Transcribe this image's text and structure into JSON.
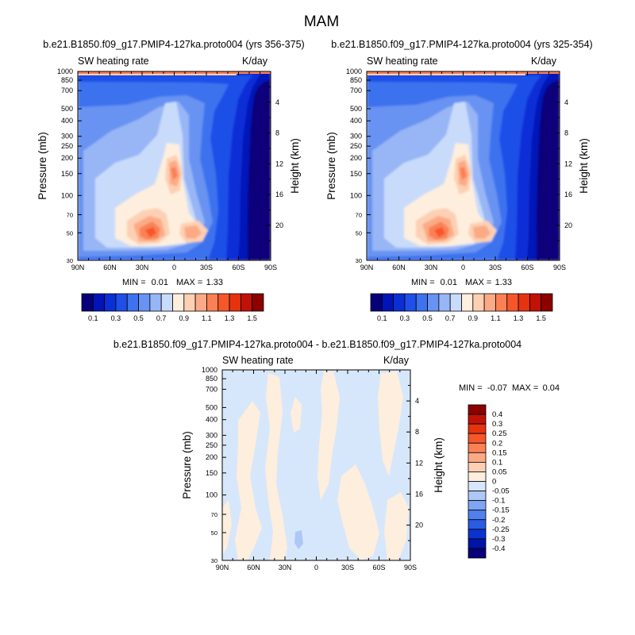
{
  "main_title": "MAM",
  "chart_data": [
    {
      "type": "heatmap",
      "title": "b.e21.B1850.f09_g17.PMIP4-127ka.proto004 (yrs 356-375)",
      "left_label": "SW heating rate",
      "right_label": "K/day",
      "ylabel": "Pressure (mb)",
      "ylabel_right": "Height (km)",
      "x_ticks": [
        "90N",
        "60N",
        "30N",
        "0",
        "30S",
        "60S",
        "90S"
      ],
      "y_ticks": [
        "30",
        "50",
        "70",
        "100",
        "150",
        "200",
        "250",
        "300",
        "400",
        "500",
        "700",
        "850",
        "1000"
      ],
      "height_ticks": [
        "20",
        "16",
        "12",
        "8",
        "4"
      ],
      "stats": {
        "min_label": "MIN =",
        "min": "0.01",
        "max_label": "MAX =",
        "max": "1.33"
      },
      "colorbar": {
        "orientation": "horizontal",
        "labels": [
          "0.1",
          "0.3",
          "0.5",
          "0.7",
          "0.9",
          "1.1",
          "1.3",
          "1.5"
        ],
        "colors": [
          "#08007a",
          "#0014b8",
          "#0b2fd6",
          "#1f4fe8",
          "#3e72ef",
          "#6893f2",
          "#98b6f5",
          "#c8dbfb",
          "#feeedd",
          "#fdd0b4",
          "#fcaa86",
          "#fb8155",
          "#f6572a",
          "#e5330f",
          "#c01206",
          "#8c0000"
        ]
      },
      "ylim_mb": [
        1000,
        30
      ],
      "xlim_lat": [
        90,
        -90
      ]
    },
    {
      "type": "heatmap",
      "title": "b.e21.B1850.f09_g17.PMIP4-127ka.proto004 (yrs 325-354)",
      "left_label": "SW heating rate",
      "right_label": "K/day",
      "ylabel": "Pressure (mb)",
      "ylabel_right": "Height (km)",
      "x_ticks": [
        "90N",
        "60N",
        "30N",
        "0",
        "30S",
        "60S",
        "90S"
      ],
      "y_ticks": [
        "30",
        "50",
        "70",
        "100",
        "150",
        "200",
        "250",
        "300",
        "400",
        "500",
        "700",
        "850",
        "1000"
      ],
      "height_ticks": [
        "20",
        "16",
        "12",
        "8",
        "4"
      ],
      "stats": {
        "min_label": "MIN =",
        "min": "0.01",
        "max_label": "MAX =",
        "max": "1.33"
      },
      "colorbar": {
        "orientation": "horizontal",
        "labels": [
          "0.1",
          "0.3",
          "0.5",
          "0.7",
          "0.9",
          "1.1",
          "1.3",
          "1.5"
        ],
        "colors": [
          "#08007a",
          "#0014b8",
          "#0b2fd6",
          "#1f4fe8",
          "#3e72ef",
          "#6893f2",
          "#98b6f5",
          "#c8dbfb",
          "#feeedd",
          "#fdd0b4",
          "#fcaa86",
          "#fb8155",
          "#f6572a",
          "#e5330f",
          "#c01206",
          "#8c0000"
        ]
      },
      "ylim_mb": [
        1000,
        30
      ],
      "xlim_lat": [
        90,
        -90
      ]
    },
    {
      "type": "heatmap",
      "title": "b.e21.B1850.f09_g17.PMIP4-127ka.proto004 - b.e21.B1850.f09_g17.PMIP4-127ka.proto004",
      "left_label": "SW heating rate",
      "right_label": "K/day",
      "ylabel": "Pressure (mb)",
      "ylabel_right": "Height (km)",
      "x_ticks": [
        "90N",
        "60N",
        "30N",
        "0",
        "30S",
        "60S",
        "90S"
      ],
      "y_ticks": [
        "30",
        "50",
        "70",
        "100",
        "150",
        "200",
        "250",
        "300",
        "400",
        "500",
        "700",
        "850",
        "1000"
      ],
      "height_ticks": [
        "20",
        "16",
        "12",
        "8",
        "4"
      ],
      "stats": {
        "min_label": "MIN =",
        "min": "-0.07",
        "max_label": "MAX =",
        "max": "0.04"
      },
      "colorbar": {
        "orientation": "vertical",
        "labels": [
          "0.4",
          "0.3",
          "0.25",
          "0.2",
          "0.15",
          "0.1",
          "0.05",
          "0",
          "-0.05",
          "-0.1",
          "-0.15",
          "-0.2",
          "-0.25",
          "-0.3",
          "-0.4"
        ],
        "colors": [
          "#8c0000",
          "#c01206",
          "#e5330f",
          "#f6572a",
          "#fb8155",
          "#fcaa86",
          "#fdd0b4",
          "#feeedd",
          "#d7e7fb",
          "#adc7f7",
          "#7ea5f3",
          "#4f80ee",
          "#2a5ce3",
          "#0b33cf",
          "#0014a6",
          "#08007a"
        ]
      },
      "ylim_mb": [
        1000,
        30
      ],
      "xlim_lat": [
        90,
        -90
      ]
    }
  ]
}
